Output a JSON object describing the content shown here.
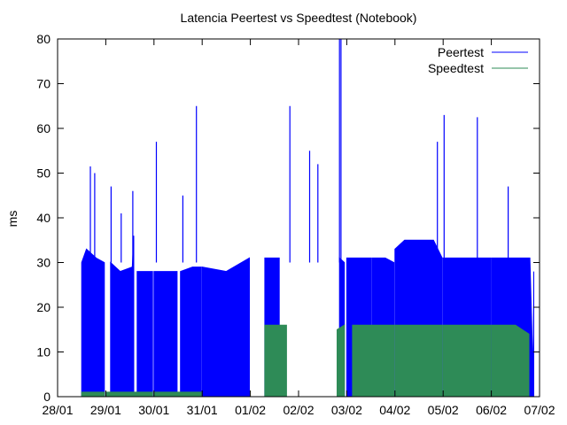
{
  "chart_data": {
    "type": "area",
    "title": "Latencia Peertest vs Speedtest (Notebook)",
    "xlabel": "",
    "ylabel": "ms",
    "ylim": [
      0,
      80
    ],
    "yticks": [
      0,
      10,
      20,
      30,
      40,
      50,
      60,
      70,
      80
    ],
    "xlim": [
      "28/01",
      "07/02"
    ],
    "xticks": [
      "28/01",
      "29/01",
      "30/01",
      "31/01",
      "01/02",
      "02/02",
      "03/02",
      "04/02",
      "05/02",
      "06/02",
      "07/02"
    ],
    "grid": false,
    "legend_position": "top-right",
    "series": [
      {
        "name": "Peertest",
        "color": "#0000ff",
        "segments": [
          {
            "start": "28/01",
            "end": "29/01",
            "points": [
              [
                0.5,
                30
              ],
              [
                0.6,
                33
              ],
              [
                0.8,
                31
              ],
              [
                0.97,
                30
              ]
            ]
          },
          {
            "start": "29/01",
            "end": "29/01",
            "points": [
              [
                0.1,
                30
              ],
              [
                0.3,
                28
              ],
              [
                0.55,
                29
              ],
              [
                0.58,
                36
              ]
            ]
          },
          {
            "start": "29/01",
            "end": "30/01",
            "points": [
              [
                0.65,
                28
              ],
              [
                0.8,
                28
              ],
              [
                0.97,
                28
              ]
            ]
          },
          {
            "start": "30/01",
            "end": "30/01",
            "points": [
              [
                0.0,
                28
              ],
              [
                0.3,
                28
              ],
              [
                0.48,
                28
              ]
            ]
          },
          {
            "start": "30/01",
            "end": "31/01",
            "points": [
              [
                0.55,
                28
              ],
              [
                0.8,
                29
              ],
              [
                0.98,
                29
              ]
            ]
          },
          {
            "start": "31/01",
            "end": "01/02",
            "points": [
              [
                0.0,
                29
              ],
              [
                0.5,
                28
              ],
              [
                0.98,
                31
              ]
            ]
          },
          {
            "start": "01/02",
            "end": "02/02",
            "points": [
              [
                0.3,
                31
              ],
              [
                0.6,
                31
              ]
            ]
          },
          {
            "start": "02/02",
            "end": "03/02",
            "points": [
              [
                0.85,
                31
              ],
              [
                0.95,
                30
              ]
            ]
          },
          {
            "start": "03/02",
            "end": "03/02",
            "points": [
              [
                0.0,
                31
              ],
              [
                0.35,
                31
              ],
              [
                0.5,
                31
              ]
            ]
          },
          {
            "start": "03/02",
            "end": "04/02",
            "points": [
              [
                0.52,
                31
              ],
              [
                0.8,
                31
              ],
              [
                0.98,
                30
              ]
            ]
          },
          {
            "start": "04/02",
            "end": "05/02",
            "points": [
              [
                0.0,
                33
              ],
              [
                0.2,
                35
              ],
              [
                0.5,
                35
              ],
              [
                0.8,
                35
              ],
              [
                0.98,
                31
              ]
            ]
          },
          {
            "start": "05/02",
            "end": "06/02",
            "points": [
              [
                0.0,
                31
              ],
              [
                0.5,
                31
              ],
              [
                0.98,
                31
              ]
            ]
          },
          {
            "start": "06/02",
            "end": "07/02",
            "points": [
              [
                0.0,
                31
              ],
              [
                0.6,
                31
              ],
              [
                0.8,
                31
              ],
              [
                0.87,
                4
              ],
              [
                0.88,
                28
              ]
            ]
          }
        ],
        "spikes": [
          {
            "x": "28/01",
            "frac": 0.68,
            "y": 51.5
          },
          {
            "x": "28/01",
            "frac": 0.77,
            "y": 50
          },
          {
            "x": "29/01",
            "frac": 0.11,
            "y": 47
          },
          {
            "x": "29/01",
            "frac": 0.32,
            "y": 41
          },
          {
            "x": "29/01",
            "frac": 0.56,
            "y": 46
          },
          {
            "x": "30/01",
            "frac": 0.05,
            "y": 57
          },
          {
            "x": "30/01",
            "frac": 0.6,
            "y": 45
          },
          {
            "x": "30/01",
            "frac": 0.88,
            "y": 65
          },
          {
            "x": "01/02",
            "frac": 0.82,
            "y": 65
          },
          {
            "x": "02/02",
            "frac": 0.23,
            "y": 55
          },
          {
            "x": "02/02",
            "frac": 0.4,
            "y": 52
          },
          {
            "x": "02/02",
            "frac": 0.85,
            "y": 80
          },
          {
            "x": "02/02",
            "frac": 0.88,
            "y": 80
          },
          {
            "x": "04/02",
            "frac": 0.88,
            "y": 57
          },
          {
            "x": "05/02",
            "frac": 0.02,
            "y": 63
          },
          {
            "x": "05/02",
            "frac": 0.71,
            "y": 62.5
          },
          {
            "x": "06/02",
            "frac": 0.35,
            "y": 47
          }
        ]
      },
      {
        "name": "Speedtest",
        "color": "#2e8b57",
        "segments": [
          {
            "start": "28/01",
            "end": "29/01",
            "points": [
              [
                0.5,
                1
              ],
              [
                0.97,
                1
              ]
            ]
          },
          {
            "start": "29/01",
            "end": "30/01",
            "points": [
              [
                0.0,
                1
              ],
              [
                0.97,
                1
              ]
            ]
          },
          {
            "start": "30/01",
            "end": "01/02",
            "points": [
              [
                0.0,
                1
              ],
              [
                0.98,
                1
              ]
            ]
          },
          {
            "start": "01/02",
            "end": "02/02",
            "points": [
              [
                0.3,
                16
              ],
              [
                0.75,
                16
              ]
            ]
          },
          {
            "start": "02/02",
            "end": "03/02",
            "points": [
              [
                0.8,
                15
              ],
              [
                0.95,
                16
              ]
            ]
          },
          {
            "start": "03/02",
            "end": "04/02",
            "points": [
              [
                0.12,
                16
              ],
              [
                0.85,
                16
              ],
              [
                0.98,
                16
              ]
            ]
          },
          {
            "start": "04/02",
            "end": "05/02",
            "points": [
              [
                0.0,
                16
              ],
              [
                0.5,
                16
              ],
              [
                0.98,
                16
              ]
            ]
          },
          {
            "start": "05/02",
            "end": "06/02",
            "points": [
              [
                0.0,
                16
              ],
              [
                0.5,
                16
              ],
              [
                0.98,
                16
              ]
            ]
          },
          {
            "start": "06/02",
            "end": "07/02",
            "points": [
              [
                0.0,
                16
              ],
              [
                0.5,
                16
              ],
              [
                0.78,
                14
              ]
            ]
          }
        ]
      }
    ]
  }
}
